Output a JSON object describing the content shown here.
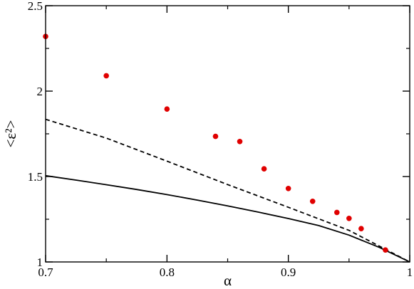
{
  "chart_data": {
    "type": "line",
    "title": "",
    "xlabel": "α",
    "ylabel": "<ε²>",
    "xlim": [
      0.7,
      1.0
    ],
    "ylim": [
      1.0,
      2.5
    ],
    "grid": false,
    "legend": "none",
    "x_ticks": [
      {
        "value": 0.7,
        "label": "0.7"
      },
      {
        "value": 0.8,
        "label": "0.8"
      },
      {
        "value": 0.9,
        "label": "0.9"
      },
      {
        "value": 1.0,
        "label": "1"
      }
    ],
    "y_ticks": [
      {
        "value": 1.0,
        "label": "1"
      },
      {
        "value": 1.5,
        "label": "1.5"
      },
      {
        "value": 2.0,
        "label": "2"
      },
      {
        "value": 2.5,
        "label": "2.5"
      }
    ],
    "x_minor": [
      0.75,
      0.85,
      0.95
    ],
    "y_minor": [
      1.25,
      1.75,
      2.25
    ],
    "series": [
      {
        "kind": "line",
        "style": "solid",
        "color": "#000000",
        "x": [
          0.7,
          0.725,
          0.75,
          0.775,
          0.8,
          0.825,
          0.85,
          0.875,
          0.9,
          0.925,
          0.95,
          0.975,
          1.0
        ],
        "y": [
          1.505,
          1.479,
          1.452,
          1.424,
          1.394,
          1.362,
          1.328,
          1.292,
          1.254,
          1.213,
          1.157,
          1.085,
          1.0
        ]
      },
      {
        "kind": "line",
        "style": "dashed",
        "color": "#000000",
        "x": [
          0.7,
          0.75,
          0.8,
          0.85,
          0.9,
          0.95,
          1.0
        ],
        "y": [
          1.835,
          1.725,
          1.59,
          1.453,
          1.32,
          1.185,
          1.0
        ]
      },
      {
        "kind": "scatter",
        "color": "#e00000",
        "x": [
          0.7,
          0.75,
          0.8,
          0.84,
          0.86,
          0.88,
          0.9,
          0.92,
          0.94,
          0.95,
          0.96,
          0.98
        ],
        "y": [
          2.32,
          2.09,
          1.895,
          1.735,
          1.705,
          1.545,
          1.43,
          1.355,
          1.29,
          1.255,
          1.195,
          1.07
        ]
      }
    ]
  }
}
